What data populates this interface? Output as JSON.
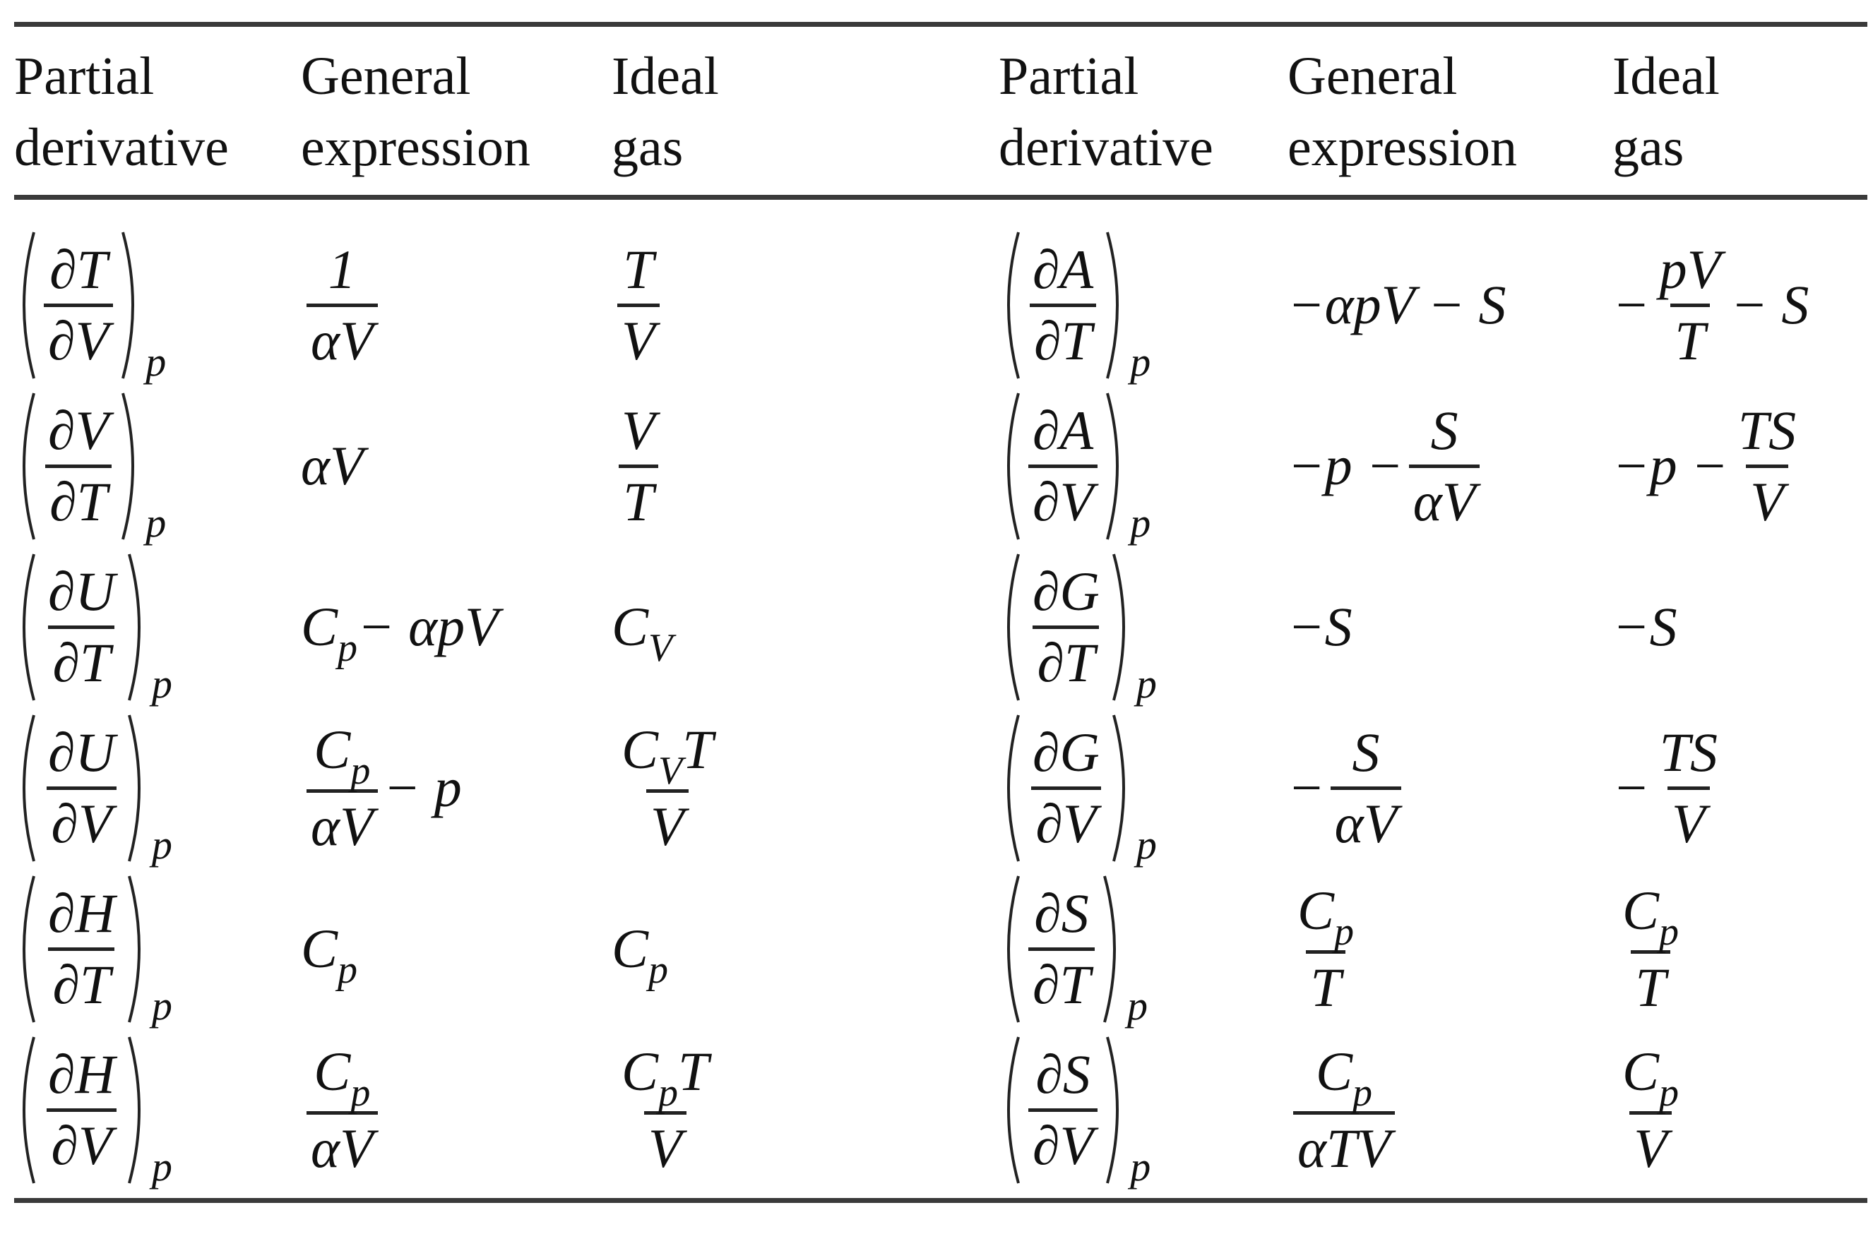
{
  "header": [
    "Partial\nderivative",
    "General\nexpression",
    "Ideal\ngas",
    "Partial\nderivative",
    "General\nexpression",
    "Ideal\ngas"
  ],
  "rows": [
    {
      "left": {
        "d": {
          "num": "∂T",
          "den": "∂V",
          "sub": "p"
        },
        "general": [
          {
            "num": [
              "1"
            ],
            "den": [
              "αV"
            ]
          }
        ],
        "ideal": [
          {
            "num": [
              "T"
            ],
            "den": [
              "V"
            ]
          }
        ]
      },
      "right": {
        "d": {
          "num": "∂A",
          "den": "∂T",
          "sub": "p"
        },
        "general": [
          "−αpV − S"
        ],
        "ideal": [
          "−",
          {
            "num": [
              "pV"
            ],
            "den": [
              "T"
            ]
          },
          "− S"
        ]
      }
    },
    {
      "left": {
        "d": {
          "num": "∂V",
          "den": "∂T",
          "sub": "p"
        },
        "general": [
          "αV"
        ],
        "ideal": [
          {
            "num": [
              "V"
            ],
            "den": [
              "T"
            ]
          }
        ]
      },
      "right": {
        "d": {
          "num": "∂A",
          "den": "∂V",
          "sub": "p"
        },
        "general": [
          "−p −",
          {
            "num": [
              "S"
            ],
            "den": [
              "αV"
            ]
          }
        ],
        "ideal": [
          "−p −",
          {
            "num": [
              "TS"
            ],
            "den": [
              "V"
            ]
          }
        ]
      }
    },
    {
      "left": {
        "d": {
          "num": "∂U",
          "den": "∂T",
          "sub": "p"
        },
        "general": [
          {
            "base": "C",
            "sub": "p"
          },
          " − αpV"
        ],
        "ideal": [
          {
            "base": "C",
            "sub": "V"
          }
        ]
      },
      "right": {
        "d": {
          "num": "∂G",
          "den": "∂T",
          "sub": "p"
        },
        "general": [
          "−S"
        ],
        "ideal": [
          "−S"
        ]
      }
    },
    {
      "left": {
        "d": {
          "num": "∂U",
          "den": "∂V",
          "sub": "p"
        },
        "general": [
          {
            "num": [
              {
                "base": "C",
                "sub": "p"
              }
            ],
            "den": [
              "αV"
            ]
          },
          "− p"
        ],
        "ideal": [
          {
            "num": [
              {
                "base": "C",
                "sub": "V"
              },
              "T"
            ],
            "den": [
              "V"
            ]
          }
        ]
      },
      "right": {
        "d": {
          "num": "∂G",
          "den": "∂V",
          "sub": "p"
        },
        "general": [
          "−",
          {
            "num": [
              "S"
            ],
            "den": [
              "αV"
            ]
          }
        ],
        "ideal": [
          "−",
          {
            "num": [
              "TS"
            ],
            "den": [
              "V"
            ]
          }
        ]
      }
    },
    {
      "left": {
        "d": {
          "num": "∂H",
          "den": "∂T",
          "sub": "p"
        },
        "general": [
          {
            "base": "C",
            "sub": "p"
          }
        ],
        "ideal": [
          {
            "base": "C",
            "sub": "p"
          }
        ]
      },
      "right": {
        "d": {
          "num": "∂S",
          "den": "∂T",
          "sub": "p"
        },
        "general": [
          {
            "num": [
              {
                "base": "C",
                "sub": "p"
              }
            ],
            "den": [
              "T"
            ]
          }
        ],
        "ideal": [
          {
            "num": [
              {
                "base": "C",
                "sub": "p"
              }
            ],
            "den": [
              "T"
            ]
          }
        ]
      }
    },
    {
      "left": {
        "d": {
          "num": "∂H",
          "den": "∂V",
          "sub": "p"
        },
        "general": [
          {
            "num": [
              {
                "base": "C",
                "sub": "p"
              }
            ],
            "den": [
              "αV"
            ]
          }
        ],
        "ideal": [
          {
            "num": [
              {
                "base": "C",
                "sub": "p"
              },
              "T"
            ],
            "den": [
              "V"
            ]
          }
        ]
      },
      "right": {
        "d": {
          "num": "∂S",
          "den": "∂V",
          "sub": "p"
        },
        "general": [
          {
            "num": [
              {
                "base": "C",
                "sub": "p"
              }
            ],
            "den": [
              "αTV"
            ]
          }
        ],
        "ideal": [
          {
            "num": [
              {
                "base": "C",
                "sub": "p"
              }
            ],
            "den": [
              "V"
            ]
          }
        ]
      }
    }
  ]
}
